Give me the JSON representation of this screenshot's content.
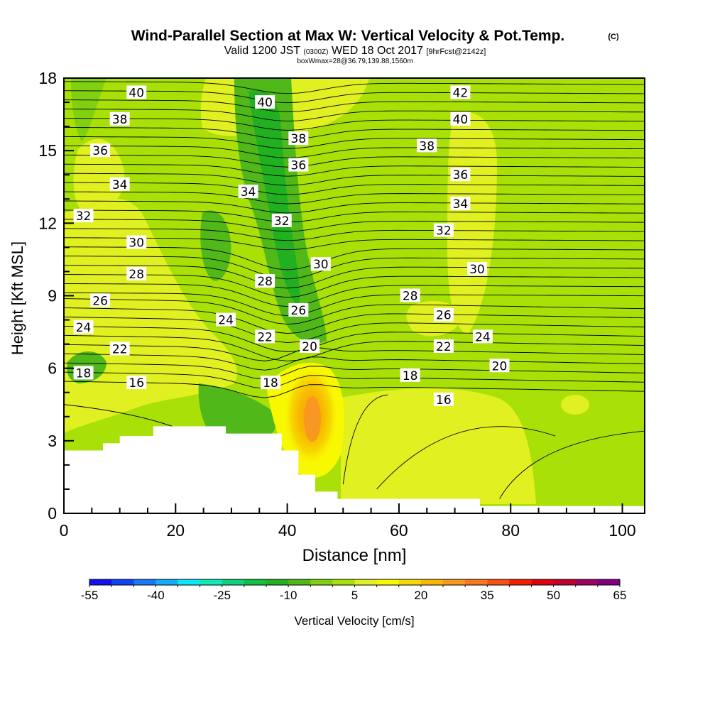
{
  "header": {
    "title": "Wind-Parallel Section at Max W: Vertical Velocity & Pot.Temp.",
    "copyright": "(C)",
    "valid_prefix": "Valid 1200 JST",
    "valid_utc": "(0300Z)",
    "valid_date": "WED 18 Oct 2017",
    "forecast": "[9hrFcst@2142z]",
    "box_info": "boxWmax=28@36.79,139.88,1560m"
  },
  "chart_data": {
    "type": "heatmap",
    "xlabel": "Distance [nm]",
    "ylabel": "Height [Kft MSL]",
    "xlim": [
      0,
      104
    ],
    "ylim": [
      0,
      18
    ],
    "x_ticks": [
      "0",
      "20",
      "40",
      "60",
      "80",
      "100"
    ],
    "y_ticks": [
      "0",
      "3",
      "6",
      "9",
      "12",
      "15",
      "18"
    ],
    "colorbar": {
      "label": "Vertical Velocity [cm/s]",
      "tick_labels": [
        "-55",
        "-40",
        "-25",
        "-10",
        "5",
        "20",
        "35",
        "50",
        "65"
      ],
      "min": -55,
      "max": 65,
      "step": 5,
      "colors": [
        "#1010f0",
        "#1040f8",
        "#1878f8",
        "#10b0f8",
        "#08e8f8",
        "#10e8b8",
        "#10d080",
        "#10c040",
        "#20b020",
        "#50b818",
        "#80d010",
        "#a8e008",
        "#e0f020",
        "#f8f800",
        "#f8d800",
        "#f8b800",
        "#f89820",
        "#f87820",
        "#f85010",
        "#f02000",
        "#e00010",
        "#c00030",
        "#a00060",
        "#800080"
      ]
    },
    "terrain_top_kft": [
      {
        "x": 0,
        "y": 2.6
      },
      {
        "x": 7,
        "y": 2.9
      },
      {
        "x": 10,
        "y": 3.2
      },
      {
        "x": 16,
        "y": 3.6
      },
      {
        "x": 29,
        "y": 3.3
      },
      {
        "x": 39,
        "y": 2.6
      },
      {
        "x": 42,
        "y": 1.6
      },
      {
        "x": 45,
        "y": 0.9
      },
      {
        "x": 49,
        "y": 0.6
      },
      {
        "x": 74.5,
        "y": 0.3
      },
      {
        "x": 104,
        "y": 0.3
      }
    ],
    "theta_contour_labels": [
      {
        "text": "40",
        "x": 13,
        "y": 17.4
      },
      {
        "text": "38",
        "x": 10,
        "y": 16.3
      },
      {
        "text": "36",
        "x": 6.5,
        "y": 15.0
      },
      {
        "text": "34",
        "x": 10,
        "y": 13.6
      },
      {
        "text": "32",
        "x": 3.5,
        "y": 12.3
      },
      {
        "text": "30",
        "x": 13,
        "y": 11.2
      },
      {
        "text": "28",
        "x": 13,
        "y": 9.9
      },
      {
        "text": "26",
        "x": 6.5,
        "y": 8.8
      },
      {
        "text": "24",
        "x": 3.5,
        "y": 7.7
      },
      {
        "text": "22",
        "x": 10,
        "y": 6.8
      },
      {
        "text": "18",
        "x": 3.5,
        "y": 5.8
      },
      {
        "text": "16",
        "x": 13,
        "y": 5.4
      },
      {
        "text": "40",
        "x": 36,
        "y": 17.0
      },
      {
        "text": "38",
        "x": 42,
        "y": 15.5
      },
      {
        "text": "36",
        "x": 42,
        "y": 14.4
      },
      {
        "text": "34",
        "x": 33,
        "y": 13.3
      },
      {
        "text": "32",
        "x": 39,
        "y": 12.1
      },
      {
        "text": "30",
        "x": 46,
        "y": 10.3
      },
      {
        "text": "28",
        "x": 36,
        "y": 9.6
      },
      {
        "text": "26",
        "x": 42,
        "y": 8.4
      },
      {
        "text": "24",
        "x": 29,
        "y": 8.0
      },
      {
        "text": "22",
        "x": 36,
        "y": 7.3
      },
      {
        "text": "20",
        "x": 44,
        "y": 6.9
      },
      {
        "text": "18",
        "x": 37,
        "y": 5.4
      },
      {
        "text": "42",
        "x": 71,
        "y": 17.4
      },
      {
        "text": "40",
        "x": 71,
        "y": 16.3
      },
      {
        "text": "38",
        "x": 65,
        "y": 15.2
      },
      {
        "text": "36",
        "x": 71,
        "y": 14.0
      },
      {
        "text": "34",
        "x": 71,
        "y": 12.8
      },
      {
        "text": "32",
        "x": 68,
        "y": 11.7
      },
      {
        "text": "30",
        "x": 74,
        "y": 10.1
      },
      {
        "text": "28",
        "x": 62,
        "y": 9.0
      },
      {
        "text": "26",
        "x": 68,
        "y": 8.2
      },
      {
        "text": "24",
        "x": 75,
        "y": 7.3
      },
      {
        "text": "22",
        "x": 68,
        "y": 6.9
      },
      {
        "text": "20",
        "x": 78,
        "y": 6.1
      },
      {
        "text": "18",
        "x": 62,
        "y": 5.7
      },
      {
        "text": "16",
        "x": 68,
        "y": 4.7
      }
    ]
  }
}
